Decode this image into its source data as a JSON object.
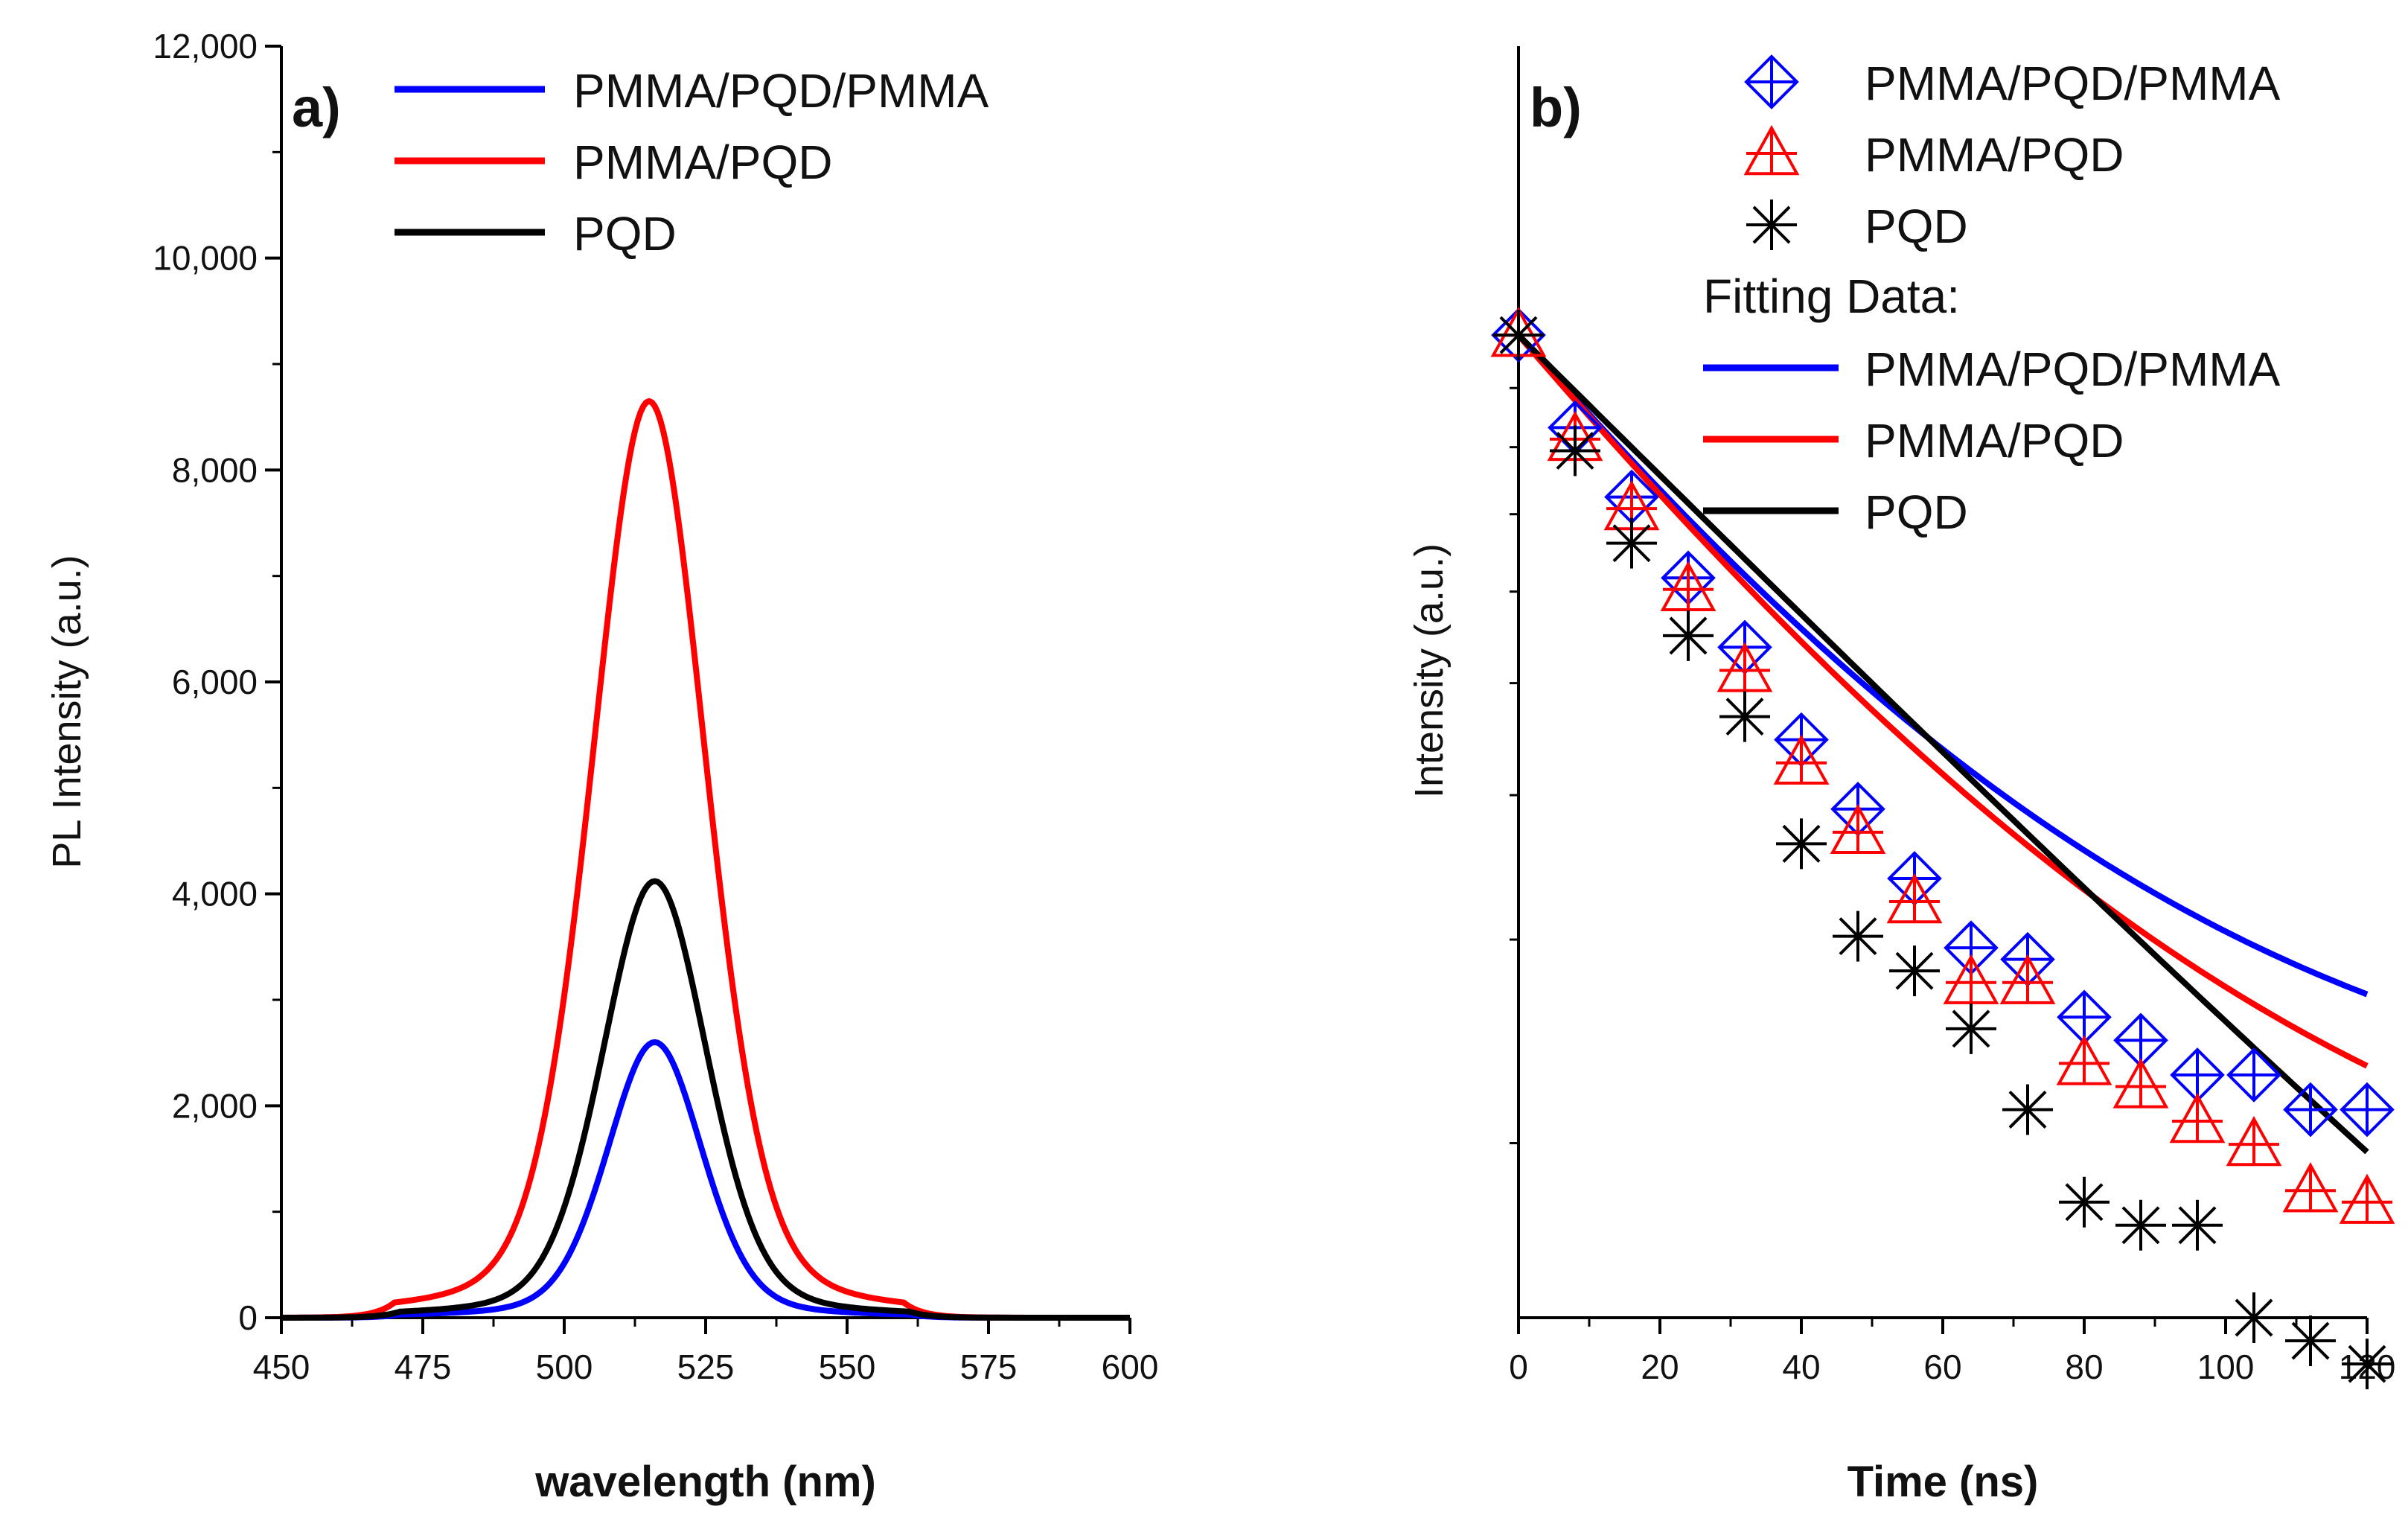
{
  "chart_data": [
    {
      "panel_label": "a)",
      "type": "line",
      "title": "",
      "xlabel": "wavelength (nm)",
      "ylabel": "PL Intensity (a.u.)",
      "xlim": [
        450,
        600
      ],
      "ylim": [
        0,
        12000
      ],
      "x_ticks": [
        450,
        475,
        500,
        525,
        550,
        575,
        600
      ],
      "y_ticks": [
        0,
        2000,
        4000,
        6000,
        8000,
        10000,
        12000
      ],
      "y_tick_labels": [
        "0",
        "2,000",
        "4,000",
        "6,000",
        "8,000",
        "10,000",
        "12,000"
      ],
      "legend_position": "top-right",
      "series": [
        {
          "name": "PMMA/PQD/PMMA",
          "color": "#0000ff",
          "peak_wavelength": 516,
          "peak_intensity": 2600,
          "fwhm": 20
        },
        {
          "name": "PMMA/PQD",
          "color": "#ff0000",
          "peak_wavelength": 515,
          "peak_intensity": 8650,
          "fwhm": 24
        },
        {
          "name": "PQD",
          "color": "#000000",
          "peak_wavelength": 516,
          "peak_intensity": 4120,
          "fwhm": 22
        }
      ]
    },
    {
      "panel_label": "b)",
      "type": "scatter",
      "scale": "log-y",
      "title": "",
      "xlabel": "Time (ns)",
      "ylabel": "Intensity (a.u.)",
      "xlim": [
        0,
        120
      ],
      "ylim_log10": [
        -0.85,
        0.25
      ],
      "x_ticks": [
        0,
        20,
        40,
        60,
        80,
        100,
        120
      ],
      "legend_position": "top-right",
      "fitting_data_label": "Fitting Data:",
      "series": [
        {
          "name": "PMMA/PQD/PMMA",
          "color": "#0000ff",
          "marker": "diamond-cross",
          "x": [
            0,
            8,
            16,
            24,
            32,
            40,
            48,
            56,
            64,
            72,
            80,
            88,
            96,
            104,
            112,
            120
          ],
          "log10_intensity": [
            0.0,
            -0.08,
            -0.14,
            -0.21,
            -0.27,
            -0.35,
            -0.41,
            -0.47,
            -0.53,
            -0.54,
            -0.59,
            -0.61,
            -0.64,
            -0.64,
            -0.67,
            -0.67
          ]
        },
        {
          "name": "PMMA/PQD",
          "color": "#ff0000",
          "marker": "triangle",
          "x": [
            0,
            8,
            16,
            24,
            32,
            40,
            48,
            56,
            64,
            72,
            80,
            88,
            96,
            104,
            112,
            120
          ],
          "log10_intensity": [
            0.0,
            -0.09,
            -0.15,
            -0.22,
            -0.29,
            -0.37,
            -0.43,
            -0.49,
            -0.56,
            -0.56,
            -0.63,
            -0.65,
            -0.68,
            -0.7,
            -0.74,
            -0.75
          ]
        },
        {
          "name": "PQD",
          "color": "#000000",
          "marker": "asterisk",
          "x": [
            0,
            8,
            16,
            24,
            32,
            40,
            48,
            56,
            64,
            72,
            80,
            88,
            96,
            104,
            112,
            120
          ],
          "log10_intensity": [
            0.0,
            -0.1,
            -0.18,
            -0.26,
            -0.33,
            -0.44,
            -0.52,
            -0.55,
            -0.6,
            -0.67,
            -0.75,
            -0.77,
            -0.77,
            -0.85,
            -0.87,
            -0.89
          ]
        }
      ],
      "fits": [
        {
          "name": "PMMA/PQD/PMMA",
          "color": "#0000ff",
          "A": 0.82,
          "tau": 50,
          "offset": 0.2
        },
        {
          "name": "PMMA/PQD",
          "color": "#ff0000",
          "A": 0.86,
          "tau": 52,
          "offset": 0.15
        },
        {
          "name": "PQD",
          "color": "#000000",
          "A": 0.98,
          "tau": 70,
          "offset": 0.02
        }
      ]
    }
  ]
}
